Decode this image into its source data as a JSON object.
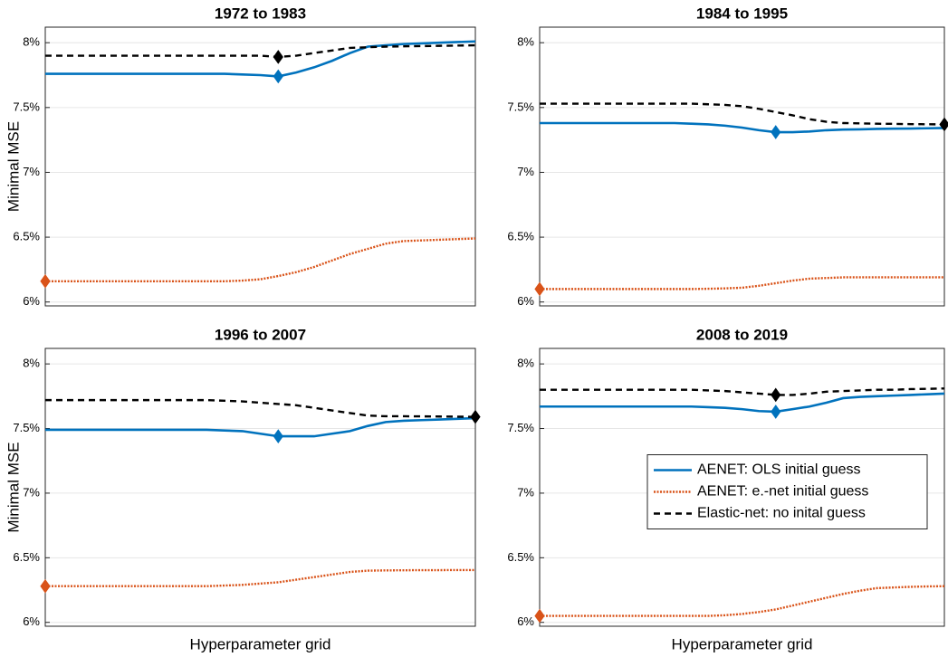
{
  "chart_data": [
    {
      "type": "line",
      "title": "1972 to 1983",
      "y_label": "Minimal MSE",
      "categories": [
        null,
        null,
        null,
        null,
        null,
        null,
        null,
        null,
        null,
        null,
        null,
        null,
        null,
        null,
        null,
        null,
        null,
        null,
        null,
        null,
        null,
        null,
        null,
        null,
        null
      ],
      "ylim": [
        5.97,
        8.12
      ],
      "yticks": [
        {
          "value": 6,
          "label": "6%"
        },
        {
          "value": 6.5,
          "label": "6.5%"
        },
        {
          "value": 7,
          "label": "7%"
        },
        {
          "value": 7.5,
          "label": "7.5%"
        },
        {
          "value": 8,
          "label": "8%"
        }
      ],
      "grid": true,
      "series": [
        {
          "color": "#0072bd",
          "dash": "solid",
          "values": [
            7.76,
            7.76,
            7.76,
            7.76,
            7.76,
            7.76,
            7.76,
            7.76,
            7.76,
            7.76,
            7.76,
            7.755,
            7.75,
            7.74,
            7.77,
            7.81,
            7.86,
            7.92,
            7.97,
            7.98,
            7.99,
            7.995,
            8.0,
            8.005,
            8.01
          ]
        },
        {
          "color": "#d95319",
          "dash": "dotted",
          "values": [
            6.16,
            6.16,
            6.16,
            6.16,
            6.16,
            6.16,
            6.16,
            6.16,
            6.16,
            6.16,
            6.16,
            6.165,
            6.175,
            6.2,
            6.23,
            6.27,
            6.32,
            6.37,
            6.41,
            6.45,
            6.47,
            6.475,
            6.48,
            6.485,
            6.49
          ]
        },
        {
          "color": "#000000",
          "dash": "dashed",
          "values": [
            7.9,
            7.9,
            7.9,
            7.9,
            7.9,
            7.9,
            7.9,
            7.9,
            7.9,
            7.9,
            7.9,
            7.9,
            7.9,
            7.89,
            7.9,
            7.92,
            7.94,
            7.96,
            7.965,
            7.97,
            7.972,
            7.974,
            7.976,
            7.978,
            7.98
          ]
        }
      ]
    },
    {
      "type": "line",
      "title": "1984 to 1995",
      "categories": [
        null,
        null,
        null,
        null,
        null,
        null,
        null,
        null,
        null,
        null,
        null,
        null,
        null,
        null,
        null,
        null,
        null,
        null,
        null,
        null,
        null,
        null,
        null,
        null,
        null
      ],
      "ylim": [
        5.97,
        8.12
      ],
      "yticks": [
        {
          "value": 6,
          "label": "6%"
        },
        {
          "value": 6.5,
          "label": "6.5%"
        },
        {
          "value": 7,
          "label": "7%"
        },
        {
          "value": 7.5,
          "label": "7.5%"
        },
        {
          "value": 8,
          "label": "8%"
        }
      ],
      "grid": true,
      "series": [
        {
          "color": "#0072bd",
          "dash": "solid",
          "values": [
            7.38,
            7.38,
            7.38,
            7.38,
            7.38,
            7.38,
            7.38,
            7.38,
            7.38,
            7.375,
            7.37,
            7.36,
            7.345,
            7.325,
            7.31,
            7.31,
            7.315,
            7.325,
            7.33,
            7.332,
            7.335,
            7.337,
            7.338,
            7.34,
            7.342
          ]
        },
        {
          "color": "#d95319",
          "dash": "dotted",
          "values": [
            6.1,
            6.1,
            6.1,
            6.1,
            6.1,
            6.1,
            6.1,
            6.1,
            6.1,
            6.1,
            6.102,
            6.105,
            6.11,
            6.125,
            6.145,
            6.165,
            6.18,
            6.185,
            6.19,
            6.19,
            6.19,
            6.19,
            6.19,
            6.19,
            6.19
          ]
        },
        {
          "color": "#000000",
          "dash": "dashed",
          "values": [
            7.53,
            7.53,
            7.53,
            7.53,
            7.53,
            7.53,
            7.53,
            7.53,
            7.53,
            7.53,
            7.525,
            7.52,
            7.51,
            7.49,
            7.465,
            7.44,
            7.41,
            7.39,
            7.38,
            7.378,
            7.375,
            7.374,
            7.372,
            7.371,
            7.37
          ]
        }
      ]
    },
    {
      "type": "line",
      "title": "1996 to 2007",
      "y_label": "Minimal MSE",
      "x_label": "Hyperparameter grid",
      "categories": [
        null,
        null,
        null,
        null,
        null,
        null,
        null,
        null,
        null,
        null,
        null,
        null,
        null,
        null,
        null,
        null,
        null,
        null,
        null,
        null,
        null,
        null,
        null,
        null,
        null
      ],
      "ylim": [
        5.97,
        8.12
      ],
      "yticks": [
        {
          "value": 6,
          "label": "6%"
        },
        {
          "value": 6.5,
          "label": "6.5%"
        },
        {
          "value": 7,
          "label": "7%"
        },
        {
          "value": 7.5,
          "label": "7.5%"
        },
        {
          "value": 8,
          "label": "8%"
        }
      ],
      "grid": true,
      "series": [
        {
          "color": "#0072bd",
          "dash": "solid",
          "values": [
            7.49,
            7.49,
            7.49,
            7.49,
            7.49,
            7.49,
            7.49,
            7.49,
            7.49,
            7.49,
            7.485,
            7.48,
            7.46,
            7.44,
            7.44,
            7.44,
            7.46,
            7.48,
            7.52,
            7.55,
            7.56,
            7.565,
            7.57,
            7.575,
            7.58
          ]
        },
        {
          "color": "#d95319",
          "dash": "dotted",
          "values": [
            6.28,
            6.28,
            6.28,
            6.28,
            6.28,
            6.28,
            6.28,
            6.28,
            6.28,
            6.28,
            6.285,
            6.29,
            6.3,
            6.31,
            6.33,
            6.35,
            6.37,
            6.39,
            6.4,
            6.402,
            6.403,
            6.404,
            6.404,
            6.405,
            6.405
          ]
        },
        {
          "color": "#000000",
          "dash": "dashed",
          "values": [
            7.72,
            7.72,
            7.72,
            7.72,
            7.72,
            7.72,
            7.72,
            7.72,
            7.72,
            7.72,
            7.715,
            7.71,
            7.7,
            7.69,
            7.68,
            7.66,
            7.64,
            7.62,
            7.6,
            7.595,
            7.595,
            7.594,
            7.593,
            7.592,
            7.59
          ]
        }
      ]
    },
    {
      "type": "line",
      "title": "2008 to 2019",
      "x_label": "Hyperparameter grid",
      "categories": [
        null,
        null,
        null,
        null,
        null,
        null,
        null,
        null,
        null,
        null,
        null,
        null,
        null,
        null,
        null,
        null,
        null,
        null,
        null,
        null,
        null,
        null,
        null,
        null,
        null
      ],
      "ylim": [
        5.97,
        8.12
      ],
      "yticks": [
        {
          "value": 6,
          "label": "6%"
        },
        {
          "value": 6.5,
          "label": "6.5%"
        },
        {
          "value": 7,
          "label": "7%"
        },
        {
          "value": 7.5,
          "label": "7.5%"
        },
        {
          "value": 8,
          "label": "8%"
        }
      ],
      "grid": true,
      "legend": "center right",
      "series": [
        {
          "name": "AENET: OLS initial guess",
          "color": "#0072bd",
          "dash": "solid",
          "values": [
            7.67,
            7.67,
            7.67,
            7.67,
            7.67,
            7.67,
            7.67,
            7.67,
            7.67,
            7.67,
            7.665,
            7.66,
            7.65,
            7.635,
            7.63,
            7.65,
            7.67,
            7.7,
            7.735,
            7.745,
            7.75,
            7.755,
            7.76,
            7.765,
            7.77
          ]
        },
        {
          "name": "AENET: e.-net initial guess",
          "color": "#d95319",
          "dash": "dotted",
          "values": [
            6.05,
            6.05,
            6.05,
            6.05,
            6.05,
            6.05,
            6.05,
            6.05,
            6.05,
            6.05,
            6.05,
            6.055,
            6.065,
            6.08,
            6.1,
            6.13,
            6.16,
            6.19,
            6.22,
            6.245,
            6.265,
            6.27,
            6.275,
            6.278,
            6.28
          ]
        },
        {
          "name": "Elastic-net: no inital guess",
          "color": "#000000",
          "dash": "dashed",
          "values": [
            7.8,
            7.8,
            7.8,
            7.8,
            7.8,
            7.8,
            7.8,
            7.8,
            7.8,
            7.8,
            7.795,
            7.79,
            7.78,
            7.77,
            7.76,
            7.76,
            7.77,
            7.785,
            7.79,
            7.795,
            7.8,
            7.8,
            7.805,
            7.807,
            7.81
          ]
        }
      ]
    }
  ]
}
